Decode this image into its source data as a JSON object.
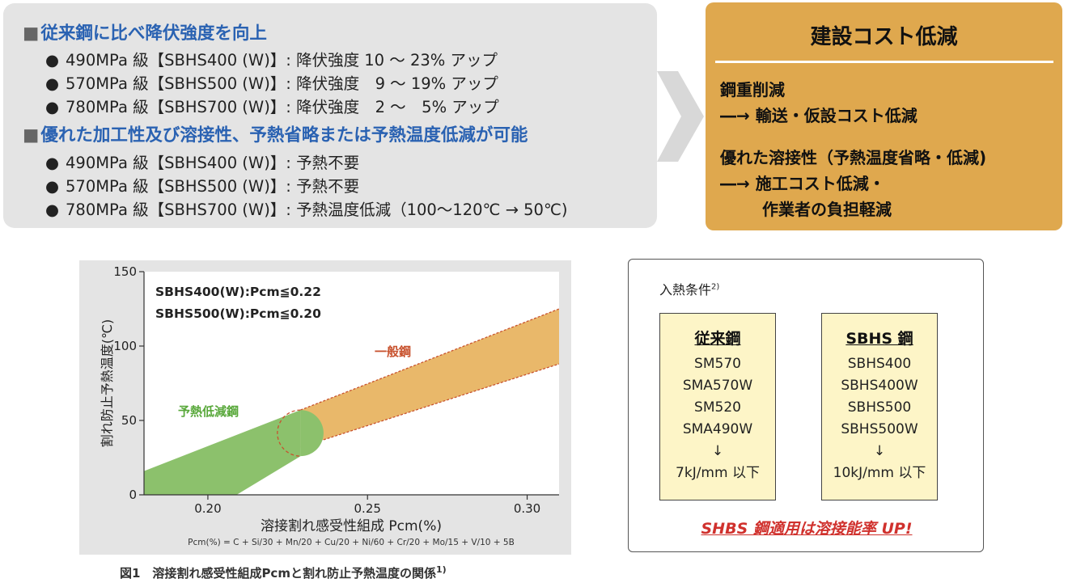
{
  "benefits": {
    "section1": {
      "heading": "従来鋼に比べ降伏強度を向上",
      "bullets": [
        "490MPa 級【SBHS400 (W)】: 降伏強度 10 ～ 23% アップ",
        "570MPa 級【SBHS500 (W)】: 降伏強度　9 ～ 19% アップ",
        "780MPa 級【SBHS700 (W)】: 降伏強度　2 ～　5% アップ"
      ]
    },
    "section2": {
      "heading": "優れた加工性及び溶接性、予熱省略または予熱温度低減が可能",
      "bullets": [
        "490MPa 級【SBHS400 (W)】: 予熱不要",
        "570MPa 級【SBHS500 (W)】: 予熱不要",
        "780MPa 級【SBHS700 (W)】: 予熱温度低減（100～120℃ → 50℃)"
      ]
    },
    "bullet_symbol": "●",
    "heading_symbol": "■"
  },
  "cost_box": {
    "title": "建設コスト低減",
    "line1": "鋼重削減",
    "line2": "―→ 輸送・仮設コスト低減",
    "line3": "優れた溶接性（予熱温度省略・低減)",
    "line4": "―→ 施工コスト低減・",
    "line5": "作業者の負担軽減"
  },
  "chart_data": {
    "type": "area",
    "x_ticks": [
      "0.20",
      "0.25",
      "0.30"
    ],
    "y_ticks": [
      "0",
      "50",
      "100",
      "150"
    ],
    "xlim": [
      0.18,
      0.31
    ],
    "ylim": [
      0,
      150
    ],
    "xlabel": "溶接割れ感受性組成 Pcm(%)",
    "ylabel": "割れ防止予熱温度(℃)",
    "formula": "Pcm(%) = C + Si/30 + Mn/20 + Cu/20 + Ni/60 + Cr/20 + Mo/15 + V/10 + 5B",
    "annotations": [
      "SBHS400(W):Pcm≦0.22",
      "SBHS500(W):Pcm≦0.20"
    ],
    "series": [
      {
        "name": "一般鋼",
        "color": "#e9b86a",
        "lower": [
          [
            0.229,
            32
          ],
          [
            0.31,
            88
          ]
        ],
        "upper": [
          [
            0.229,
            57
          ],
          [
            0.31,
            125
          ]
        ]
      },
      {
        "name": "予熱低減鋼",
        "color": "#8cc16c",
        "lower": [
          [
            0.18,
            0
          ],
          [
            0.209,
            0
          ],
          [
            0.229,
            26
          ]
        ],
        "upper": [
          [
            0.18,
            16
          ],
          [
            0.229,
            57
          ]
        ]
      }
    ]
  },
  "heat_input": {
    "title": "入熱条件",
    "note_ref": "2)",
    "conventional": {
      "heading": "従来鋼",
      "items": [
        "SM570",
        "SMA570W",
        "SM520",
        "SMA490W",
        "↓",
        "7kJ/mm 以下"
      ]
    },
    "sbhs": {
      "heading": "SBHS 鋼",
      "items": [
        "SBHS400",
        "SBHS400W",
        "SBHS500",
        "SBHS500W",
        "↓",
        "10kJ/mm 以下"
      ]
    },
    "slogan": "SHBS 鋼適用は溶接能率 UP!"
  },
  "caption": {
    "text": "図1　溶接割れ感受性組成Pcmと割れ防止予熱温度の関係",
    "ref": "1)"
  }
}
